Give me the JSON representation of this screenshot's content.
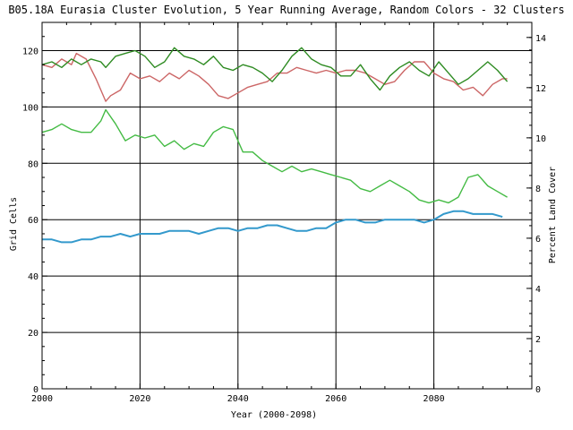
{
  "chart_data": {
    "type": "line",
    "title": "B05.18A Eurasia Cluster Evolution, 5 Year Running Average, Random Colors - 32 Clusters",
    "xlabel": "Year (2000-2098)",
    "ylabel": "Grid Cells",
    "y2label": "Percent Land Cover",
    "xlim": [
      2000,
      2100
    ],
    "ylim": [
      0,
      130
    ],
    "y2lim": [
      0,
      14.6
    ],
    "x_ticks": [
      "2000",
      "2020",
      "2040",
      "2060",
      "2080"
    ],
    "y_ticks": [
      "0",
      "20",
      "40",
      "60",
      "80",
      "100",
      "120"
    ],
    "y2_ticks": [
      "0",
      "2",
      "4",
      "6",
      "8",
      "10",
      "12",
      "14"
    ],
    "grid": true,
    "series": [
      {
        "color": "#cc6666",
        "x": [
          2000,
          2002,
          2004,
          2006,
          2007,
          2009,
          2011,
          2013,
          2014,
          2016,
          2018,
          2020,
          2022,
          2024,
          2026,
          2028,
          2030,
          2032,
          2034,
          2036,
          2038,
          2040,
          2042,
          2044,
          2046,
          2048,
          2050,
          2052,
          2054,
          2056,
          2058,
          2060,
          2062,
          2064,
          2066,
          2068,
          2070,
          2072,
          2074,
          2076,
          2078,
          2080,
          2082,
          2084,
          2086,
          2088,
          2090,
          2092,
          2094,
          2095
        ],
        "values": [
          115,
          114,
          117,
          115,
          119,
          117,
          110,
          102,
          104,
          106,
          112,
          110,
          111,
          109,
          112,
          110,
          113,
          111,
          108,
          104,
          103,
          105,
          107,
          108,
          109,
          112,
          112,
          114,
          113,
          112,
          113,
          112,
          113,
          113,
          112,
          110,
          108,
          109,
          113,
          116,
          116,
          112,
          110,
          109,
          106,
          107,
          104,
          108,
          110,
          110
        ]
      },
      {
        "color": "#2e8b22",
        "x": [
          2000,
          2002,
          2004,
          2006,
          2008,
          2010,
          2012,
          2013,
          2015,
          2017,
          2019,
          2021,
          2023,
          2025,
          2027,
          2029,
          2031,
          2033,
          2035,
          2037,
          2039,
          2041,
          2043,
          2045,
          2047,
          2049,
          2051,
          2053,
          2055,
          2057,
          2059,
          2061,
          2063,
          2065,
          2067,
          2069,
          2071,
          2073,
          2075,
          2077,
          2079,
          2081,
          2083,
          2085,
          2087,
          2089,
          2091,
          2093,
          2095
        ],
        "values": [
          115,
          116,
          114,
          117,
          115,
          117,
          116,
          114,
          118,
          119,
          120,
          118,
          114,
          116,
          121,
          118,
          117,
          115,
          118,
          114,
          113,
          115,
          114,
          112,
          109,
          113,
          118,
          121,
          117,
          115,
          114,
          111,
          111,
          115,
          110,
          106,
          111,
          114,
          116,
          113,
          111,
          116,
          112,
          108,
          110,
          113,
          116,
          113,
          109
        ]
      },
      {
        "color": "#44bb44",
        "x": [
          2000,
          2002,
          2004,
          2006,
          2008,
          2010,
          2012,
          2013,
          2015,
          2017,
          2019,
          2021,
          2023,
          2025,
          2027,
          2029,
          2031,
          2033,
          2035,
          2037,
          2039,
          2041,
          2043,
          2045,
          2047,
          2049,
          2051,
          2053,
          2055,
          2057,
          2059,
          2061,
          2063,
          2065,
          2067,
          2069,
          2071,
          2073,
          2075,
          2077,
          2079,
          2081,
          2083,
          2085,
          2087,
          2089,
          2091,
          2093,
          2095
        ],
        "values": [
          91,
          92,
          94,
          92,
          91,
          91,
          95,
          99,
          94,
          88,
          90,
          89,
          90,
          86,
          88,
          85,
          87,
          86,
          91,
          93,
          92,
          84,
          84,
          81,
          79,
          77,
          79,
          77,
          78,
          77,
          76,
          75,
          74,
          71,
          70,
          72,
          74,
          72,
          70,
          67,
          66,
          67,
          66,
          68,
          75,
          76,
          72,
          70,
          68
        ]
      },
      {
        "color": "#3399cc",
        "x": [
          2000,
          2002,
          2004,
          2006,
          2008,
          2010,
          2012,
          2014,
          2016,
          2018,
          2020,
          2022,
          2024,
          2026,
          2028,
          2030,
          2032,
          2034,
          2036,
          2038,
          2040,
          2042,
          2044,
          2046,
          2048,
          2050,
          2052,
          2054,
          2056,
          2058,
          2060,
          2062,
          2064,
          2066,
          2068,
          2070,
          2072,
          2074,
          2076,
          2078,
          2080,
          2082,
          2084,
          2086,
          2088,
          2090,
          2092,
          2094
        ],
        "values": [
          53,
          53,
          52,
          52,
          53,
          53,
          54,
          54,
          55,
          54,
          55,
          55,
          55,
          56,
          56,
          56,
          55,
          56,
          57,
          57,
          56,
          57,
          57,
          58,
          58,
          57,
          56,
          56,
          57,
          57,
          59,
          60,
          60,
          59,
          59,
          60,
          60,
          60,
          60,
          59,
          60,
          62,
          63,
          63,
          62,
          62,
          62,
          61
        ]
      }
    ]
  }
}
